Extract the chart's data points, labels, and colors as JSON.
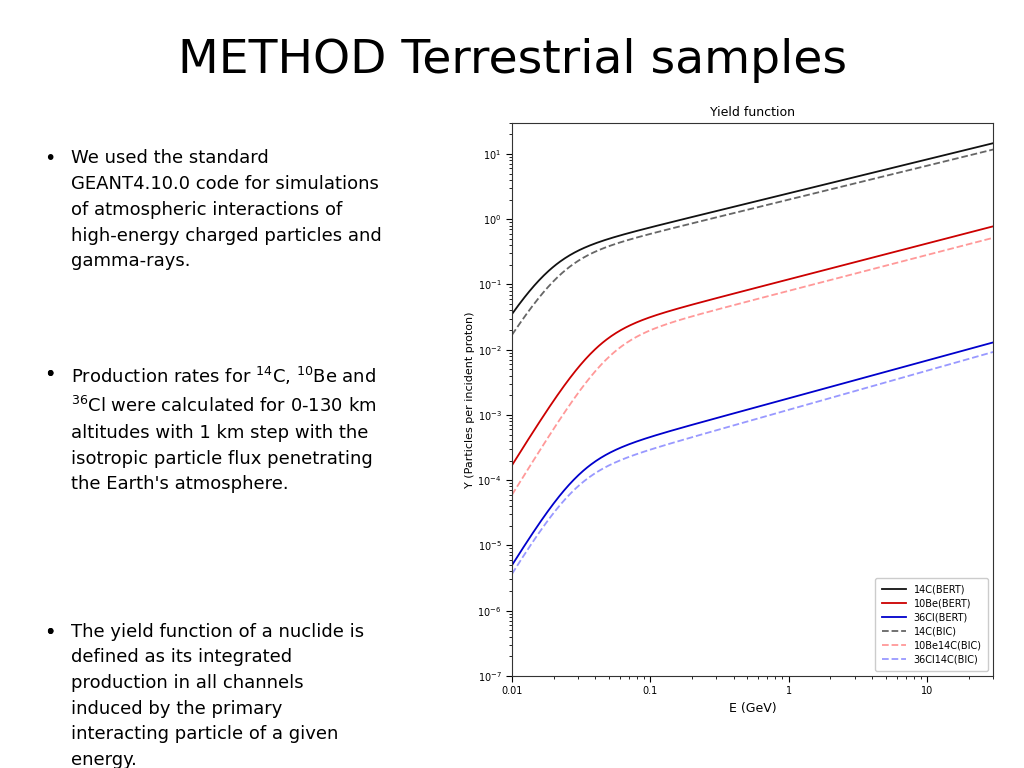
{
  "title": "METHOD Terrestrial samples",
  "title_fontsize": 34,
  "title_color": "#000000",
  "background_color": "#ffffff",
  "bullet_points": [
    [
      "We used the standard\nGEANT4.10.0 code for simulations\nof atmospheric interactions of\nhigh-energy charged particles and\ngamma-rays."
    ],
    [
      "Production rates for ",
      "14",
      "C, ",
      "10",
      "Be and\n",
      "36",
      "Cl were calculated for 0-130 km\naltitudes with 1 km step with the\nisotropic particle flux penetrating\nthe Earth's atmosphere."
    ],
    [
      "The yield function of a nuclide is\ndefined as its integrated\nproduction in all channels\ninduced by the primary\ninteracting particle of a given\nenergy."
    ]
  ],
  "bullet_fontsize": 13,
  "bullet_color": "#000000",
  "plot_title": "Yield function",
  "plot_xlabel": "E (GeV)",
  "plot_ylabel": "Y (Particles per incident proton)",
  "plot_xlim": [
    0.01,
    30
  ],
  "plot_ylim": [
    1e-07,
    30
  ],
  "legend_entries": [
    {
      "label": "14C(BERT)",
      "color": "#111111",
      "linestyle": "-"
    },
    {
      "label": "10Be(BERT)",
      "color": "#cc0000",
      "linestyle": "-"
    },
    {
      "label": "36Cl(BERT)",
      "color": "#0000cc",
      "linestyle": "-"
    },
    {
      "label": "14C(BIC)",
      "color": "#666666",
      "linestyle": "--"
    },
    {
      "label": "10Be14C(BIC)",
      "color": "#ff9999",
      "linestyle": "--"
    },
    {
      "label": "36Cl14C(BIC)",
      "color": "#9999ff",
      "linestyle": "--"
    }
  ]
}
